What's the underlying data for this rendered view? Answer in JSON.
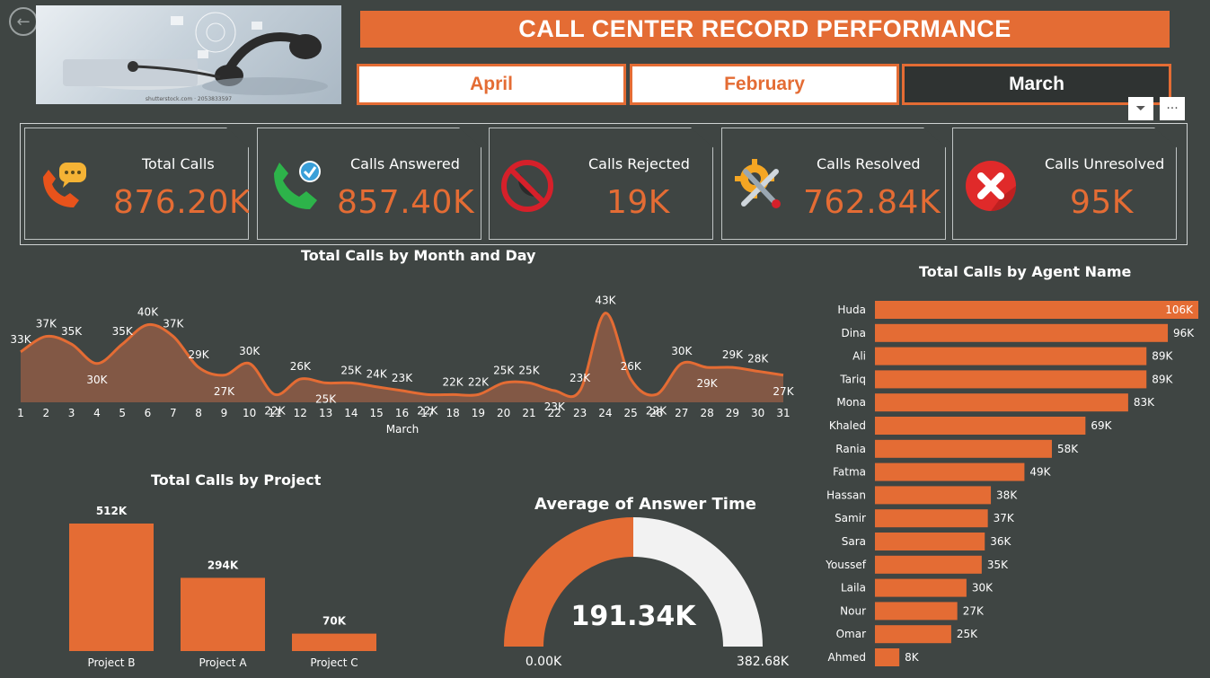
{
  "header": {
    "title": "CALL CENTER RECORD PERFORMANCE",
    "hero_caption": "shutterstock.com · 2053833597",
    "months": [
      {
        "label": "April",
        "selected": false
      },
      {
        "label": "February",
        "selected": false
      },
      {
        "label": "March",
        "selected": true
      }
    ],
    "filter_icon": "filter-icon",
    "more_icon": "more-options-icon",
    "more_label": "···",
    "filter_label": "⏷"
  },
  "kpis": [
    {
      "label": "Total Calls",
      "value": "876.20K",
      "icon": "phone-chat-icon"
    },
    {
      "label": "Calls Answered",
      "value": "857.40K",
      "icon": "phone-check-icon"
    },
    {
      "label": "Calls Rejected",
      "value": "19K",
      "icon": "phone-blocked-icon"
    },
    {
      "label": "Calls Resolved",
      "value": "762.84K",
      "icon": "tools-gear-icon"
    },
    {
      "label": "Calls Unresolved",
      "value": "95K",
      "icon": "red-x-icon"
    }
  ],
  "colors": {
    "accent": "#e46c34",
    "background": "#3f4543",
    "area_fill": "#8a5a46",
    "gauge_rest": "#f2f2f2"
  },
  "chart_data": [
    {
      "type": "area",
      "title": "Total Calls by Month and Day",
      "xlabel": "March",
      "ylabel": "",
      "x": [
        1,
        2,
        3,
        4,
        5,
        6,
        7,
        8,
        9,
        10,
        11,
        12,
        13,
        14,
        15,
        16,
        17,
        18,
        19,
        20,
        21,
        22,
        23,
        24,
        25,
        26,
        27,
        28,
        29,
        30,
        31
      ],
      "values": [
        33,
        37,
        35,
        30,
        35,
        40,
        37,
        29,
        27,
        30,
        22,
        26,
        25,
        25,
        24,
        23,
        22,
        22,
        22,
        25,
        25,
        23,
        23,
        43,
        26,
        22,
        30,
        29,
        29,
        28,
        27
      ],
      "labels": [
        "33K",
        "37K",
        "35K",
        "30K",
        "35K",
        "40K",
        "37K",
        "29K",
        "27K",
        "30K",
        "22K",
        "26K",
        "25K",
        "25K",
        "24K",
        "23K",
        "22K",
        "22K",
        "22K",
        "25K",
        "25K",
        "23K",
        "23K",
        "43K",
        "26K",
        "22K",
        "30K",
        "29K",
        "29K",
        "28K",
        "27K"
      ],
      "ylim": [
        20,
        45
      ]
    },
    {
      "type": "bar",
      "title": "Total Calls by Agent Name",
      "orientation": "horizontal",
      "categories": [
        "Huda",
        "Dina",
        "Ali",
        "Tariq",
        "Mona",
        "Khaled",
        "Rania",
        "Fatma",
        "Hassan",
        "Samir",
        "Sara",
        "Youssef",
        "Laila",
        "Nour",
        "Omar",
        "Ahmed"
      ],
      "values": [
        106,
        96,
        89,
        89,
        83,
        69,
        58,
        49,
        38,
        37,
        36,
        35,
        30,
        27,
        25,
        8
      ],
      "labels": [
        "106K",
        "96K",
        "89K",
        "89K",
        "83K",
        "69K",
        "58K",
        "49K",
        "38K",
        "37K",
        "36K",
        "35K",
        "30K",
        "27K",
        "25K",
        "8K"
      ],
      "xlim": [
        0,
        106
      ]
    },
    {
      "type": "bar",
      "title": "Total Calls by Project",
      "categories": [
        "Project B",
        "Project A",
        "Project C"
      ],
      "values": [
        512,
        294,
        70
      ],
      "labels": [
        "512K",
        "294K",
        "70K"
      ],
      "ylim": [
        0,
        512
      ]
    },
    {
      "type": "gauge",
      "title": "Average of Answer Time",
      "value": 191.34,
      "value_label": "191.34K",
      "min": 0,
      "max": 382.68,
      "min_label": "0.00K",
      "max_label": "382.68K"
    }
  ]
}
